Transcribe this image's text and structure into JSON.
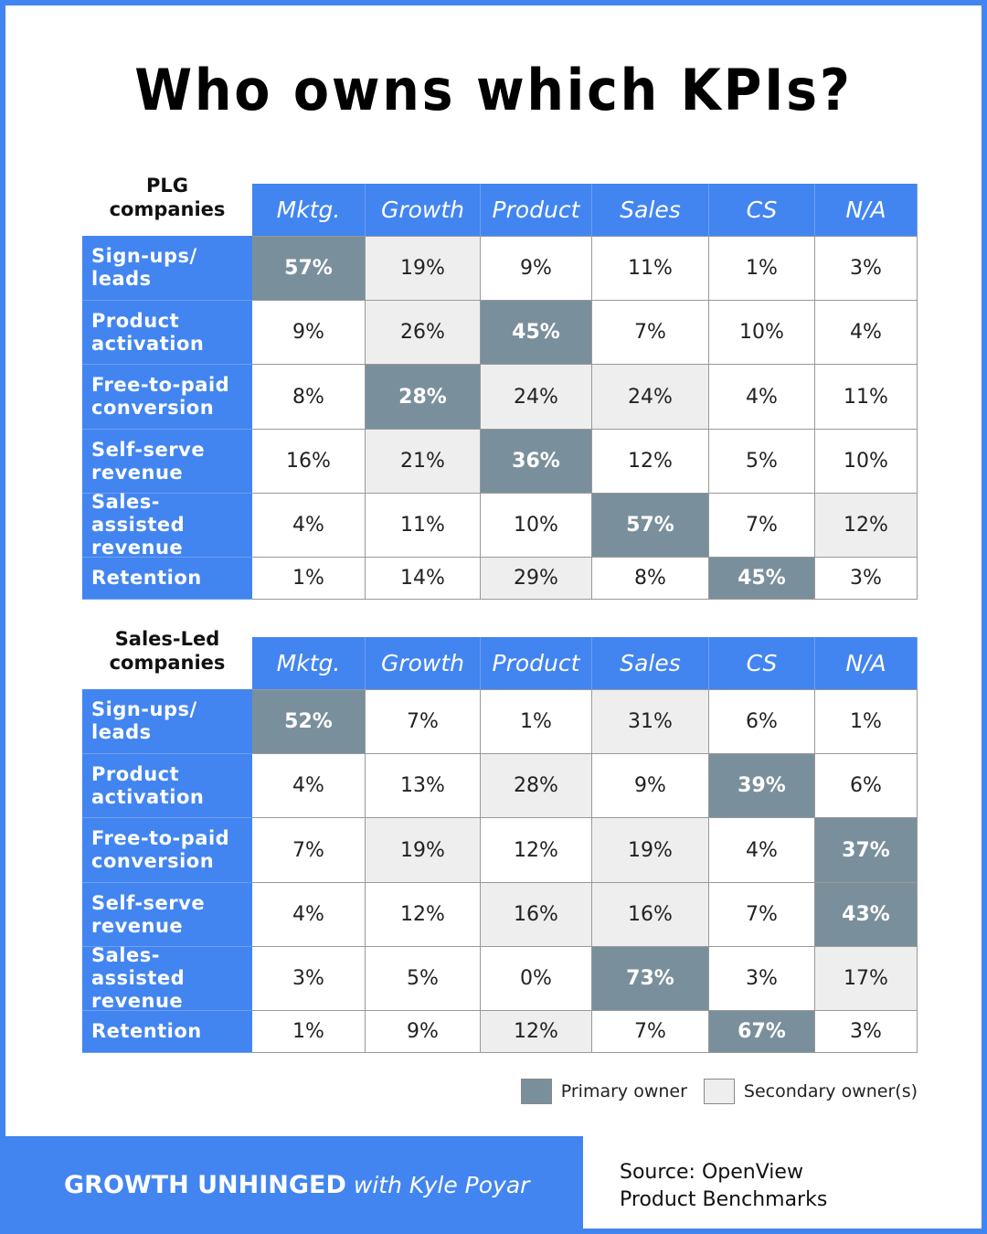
{
  "title": "Who owns which KPIs?",
  "columns": [
    "Mktg.",
    "Growth",
    "Product",
    "Sales",
    "CS",
    "N/A"
  ],
  "rows": [
    "Sign-ups/ leads",
    "Product activation",
    "Free-to-paid conversion",
    "Self-serve revenue",
    "Sales-assisted revenue",
    "Retention"
  ],
  "colors": {
    "accent": "#4285f0",
    "primary": "#7a8f9c",
    "secondary": "#eeeeee"
  },
  "chart_data": [
    {
      "type": "table",
      "title": "PLG companies",
      "values": [
        [
          "57%",
          "19%",
          "9%",
          "11%",
          "1%",
          "3%"
        ],
        [
          "9%",
          "26%",
          "45%",
          "7%",
          "10%",
          "4%"
        ],
        [
          "8%",
          "28%",
          "24%",
          "24%",
          "4%",
          "11%"
        ],
        [
          "16%",
          "21%",
          "36%",
          "12%",
          "5%",
          "10%"
        ],
        [
          "4%",
          "11%",
          "10%",
          "57%",
          "7%",
          "12%"
        ],
        [
          "1%",
          "14%",
          "29%",
          "8%",
          "45%",
          "3%"
        ]
      ],
      "ownership": [
        [
          "P",
          "S",
          "N",
          "N",
          "N",
          "N"
        ],
        [
          "N",
          "S",
          "P",
          "N",
          "N",
          "N"
        ],
        [
          "N",
          "P",
          "S",
          "S",
          "N",
          "N"
        ],
        [
          "N",
          "S",
          "P",
          "N",
          "N",
          "N"
        ],
        [
          "N",
          "N",
          "N",
          "P",
          "N",
          "S"
        ],
        [
          "N",
          "N",
          "S",
          "N",
          "P",
          "N"
        ]
      ]
    },
    {
      "type": "table",
      "title": "Sales-Led companies",
      "values": [
        [
          "52%",
          "7%",
          "1%",
          "31%",
          "6%",
          "1%"
        ],
        [
          "4%",
          "13%",
          "28%",
          "9%",
          "39%",
          "6%"
        ],
        [
          "7%",
          "19%",
          "12%",
          "19%",
          "4%",
          "37%"
        ],
        [
          "4%",
          "12%",
          "16%",
          "16%",
          "7%",
          "43%"
        ],
        [
          "3%",
          "5%",
          "0%",
          "73%",
          "3%",
          "17%"
        ],
        [
          "1%",
          "9%",
          "12%",
          "7%",
          "67%",
          "3%"
        ]
      ],
      "ownership": [
        [
          "P",
          "N",
          "N",
          "S",
          "N",
          "N"
        ],
        [
          "N",
          "N",
          "S",
          "N",
          "P",
          "N"
        ],
        [
          "N",
          "S",
          "N",
          "S",
          "N",
          "P"
        ],
        [
          "N",
          "N",
          "S",
          "S",
          "N",
          "P"
        ],
        [
          "N",
          "N",
          "N",
          "P",
          "N",
          "S"
        ],
        [
          "N",
          "N",
          "S",
          "N",
          "P",
          "N"
        ]
      ]
    }
  ],
  "corner_labels": [
    [
      "PLG",
      "companies"
    ],
    [
      "Sales-Led",
      "companies"
    ]
  ],
  "legend": {
    "primary": "Primary owner",
    "secondary": "Secondary owner(s)"
  },
  "footer": {
    "brand": "GROWTH UNHINGED",
    "with": "with Kyle Poyar",
    "source_line1": "Source: OpenView",
    "source_line2": "Product Benchmarks"
  }
}
